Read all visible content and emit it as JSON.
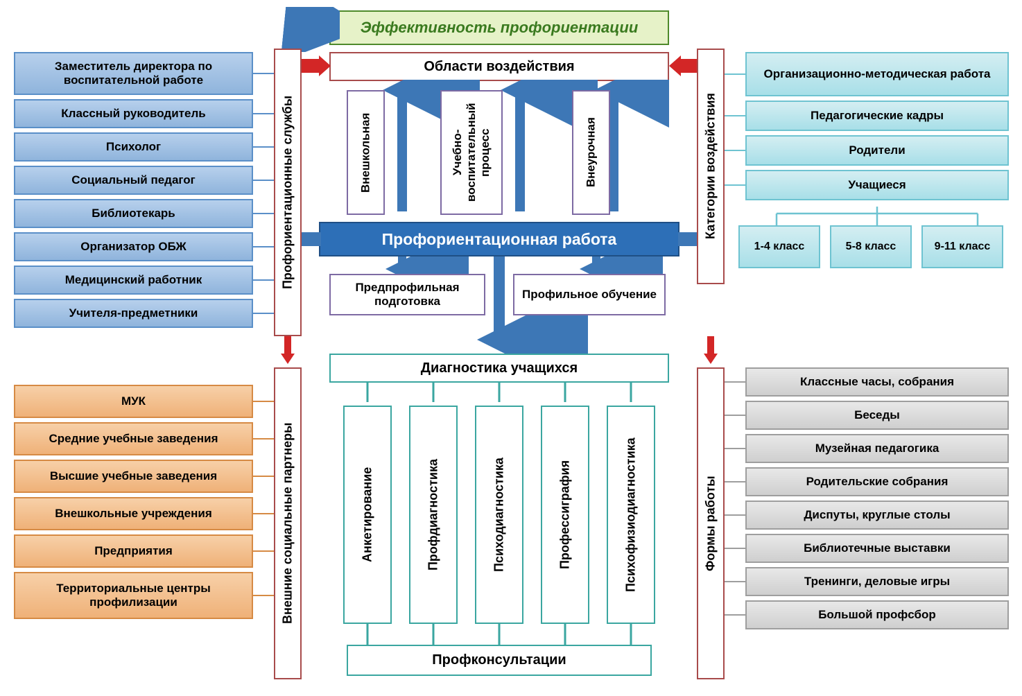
{
  "diagram": {
    "type": "flowchart",
    "background": "#ffffff",
    "title_fontsize": 22,
    "label_fontsize": 17,
    "small_fontsize": 15,
    "top_green": {
      "label": "Эффективность профориентации",
      "fill": "#e6f2c8",
      "border": "#4e8a2b",
      "text": "#3a7a1f"
    },
    "areas_header": {
      "label": "Области воздействия",
      "fill": "#ffffff",
      "border": "#a84b4b",
      "text": "#000000"
    },
    "area_items": {
      "fill": "#ffffff",
      "border": "#7d6aa3",
      "text": "#000000",
      "items": [
        "Внешкольная",
        "Учебно-воспитательный процесс",
        "Внеурочная"
      ]
    },
    "center_bar": {
      "label": "Профориентационная работа",
      "fill": "#2d6fb7",
      "border": "#1f4f85",
      "text": "#ffffff"
    },
    "center_sub": {
      "fill": "#ffffff",
      "border": "#7d6aa3",
      "text": "#000000",
      "items": [
        "Предпрофильная подготовка",
        "Профильное обучение"
      ]
    },
    "diag_header": {
      "label": "Диагностика учащихся",
      "fill": "#ffffff",
      "border": "#3aa6a0",
      "text": "#000000"
    },
    "diag_items": {
      "fill": "#ffffff",
      "border": "#3aa6a0",
      "text": "#000000",
      "items": [
        "Анкетирование",
        "Профдиагностика",
        "Психодиагностика",
        "Профессиграфия",
        "Психофизиодиагностика"
      ]
    },
    "diag_footer": {
      "label": "Профконсультации",
      "fill": "#ffffff",
      "border": "#3aa6a0",
      "text": "#000000"
    },
    "left_upper_header": {
      "label": "Профориентационные службы",
      "fill": "#ffffff",
      "border": "#a84b4b",
      "text": "#000000"
    },
    "left_upper_items": {
      "fill_top": "#b7d0ec",
      "fill_bot": "#8fb4dc",
      "border": "#5a8fc8",
      "text": "#000000",
      "items": [
        "Заместитель директора по воспитательной работе",
        "Классный руководитель",
        "Психолог",
        "Социальный педагог",
        "Библиотекарь",
        "Организатор ОБЖ",
        "Медицинский работник",
        "Учителя-предметники"
      ]
    },
    "left_lower_header": {
      "label": "Внешние социальные партнеры",
      "fill": "#ffffff",
      "border": "#a84b4b",
      "text": "#000000"
    },
    "left_lower_items": {
      "fill_top": "#f7d0a8",
      "fill_bot": "#efb178",
      "border": "#d68a44",
      "text": "#000000",
      "items": [
        "МУК",
        "Средние учебные заведения",
        "Высшие учебные заведения",
        "Внешкольные учреждения",
        "Предприятия",
        "Территориальные центры профилизации"
      ]
    },
    "right_upper_header": {
      "label": "Категории воздействия",
      "fill": "#ffffff",
      "border": "#a84b4b",
      "text": "#000000"
    },
    "right_upper_items": {
      "fill_top": "#d4eef2",
      "fill_bot": "#a8dfe8",
      "border": "#6ec3d1",
      "text": "#000000",
      "items": [
        "Организационно-методическая работа",
        "Педагогические кадры",
        "Родители",
        "Учащиеся"
      ]
    },
    "right_upper_sub": {
      "fill_top": "#d4eef2",
      "fill_bot": "#a8dfe8",
      "border": "#6ec3d1",
      "text": "#000000",
      "items": [
        "1-4 класс",
        "5-8 класс",
        "9-11 класс"
      ]
    },
    "right_lower_header": {
      "label": "Формы работы",
      "fill": "#ffffff",
      "border": "#a84b4b",
      "text": "#000000"
    },
    "right_lower_items": {
      "fill_top": "#e8e8e8",
      "fill_bot": "#cfcfcf",
      "border": "#9e9e9e",
      "text": "#000000",
      "items": [
        "Классные часы, собрания",
        "Беседы",
        "Музейная педагогика",
        "Родительские собрания",
        "Диспуты, круглые столы",
        "Библиотечные выставки",
        "Тренинги, деловые игры",
        "Большой профсбор"
      ]
    },
    "arrows": {
      "red": "#d32626",
      "blue": "#3d77b6",
      "teal": "#3aa6a0"
    }
  }
}
